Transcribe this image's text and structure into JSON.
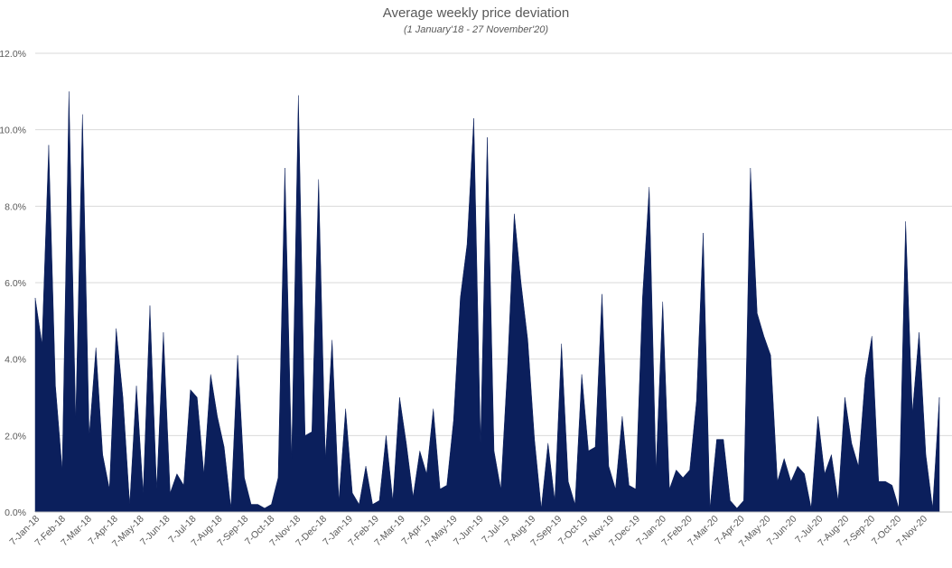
{
  "chart_data": {
    "type": "area",
    "title": "Average weekly price deviation",
    "subtitle": "(1 January'18 - 27 November'20)",
    "xlabel": "",
    "ylabel": "",
    "ylim": [
      0,
      12
    ],
    "y_ticks": [
      "0.0%",
      "2.0%",
      "4.0%",
      "6.0%",
      "8.0%",
      "10.0%",
      "12.0%"
    ],
    "y_tick_values": [
      0,
      2,
      4,
      6,
      8,
      10,
      12
    ],
    "grid": true,
    "legend": "none",
    "color": "#0b1f5c",
    "x_tick_labels": [
      "7-Jan-18",
      "7-Feb-18",
      "7-Mar-18",
      "7-Apr-18",
      "7-May-18",
      "7-Jun-18",
      "7-Jul-18",
      "7-Aug-18",
      "7-Sep-18",
      "7-Oct-18",
      "7-Nov-18",
      "7-Dec-18",
      "7-Jan-19",
      "7-Feb-19",
      "7-Mar-19",
      "7-Apr-19",
      "7-May-19",
      "7-Jun-19",
      "7-Jul-19",
      "7-Aug-19",
      "7-Sep-19",
      "7-Oct-19",
      "7-Nov-19",
      "7-Dec-19",
      "7-Jan-20",
      "7-Feb-20",
      "7-Mar-20",
      "7-Apr-20",
      "7-May-20",
      "7-Jun-20",
      "7-Jul-20",
      "7-Aug-20",
      "7-Sep-20",
      "7-Oct-20",
      "7-Nov-20"
    ],
    "series": [
      {
        "values": [
          5.6,
          4.4,
          9.6,
          3.3,
          1.1,
          11.0,
          2.4,
          10.4,
          2.0,
          4.3,
          1.5,
          0.6,
          4.8,
          3.0,
          0.2,
          3.3,
          0.5,
          5.4,
          0.6,
          4.7,
          0.5,
          1.0,
          0.7,
          3.2,
          3.0,
          1.0,
          3.6,
          2.5,
          1.7,
          0.1,
          4.1,
          0.9,
          0.2,
          0.2,
          0.1,
          0.2,
          0.9,
          9.0,
          1.4,
          10.9,
          2.0,
          2.1,
          8.7,
          1.4,
          4.5,
          0.3,
          2.7,
          0.5,
          0.2,
          1.2,
          0.2,
          0.3,
          2.0,
          0.3,
          3.0,
          1.8,
          0.4,
          1.6,
          1.0,
          2.7,
          0.6,
          0.7,
          2.4,
          5.6,
          7.0,
          10.3,
          1.8,
          9.8,
          1.6,
          0.6,
          3.8,
          7.8,
          6.0,
          4.5,
          1.9,
          0.1,
          1.8,
          0.3,
          4.4,
          0.8,
          0.2,
          3.6,
          1.6,
          1.7,
          5.7,
          1.2,
          0.6,
          2.5,
          0.7,
          0.6,
          5.6,
          8.5,
          1.1,
          5.5,
          0.6,
          1.1,
          0.9,
          1.1,
          2.9,
          7.3,
          0.1,
          1.9,
          1.9,
          0.3,
          0.1,
          0.3,
          9.0,
          5.2,
          4.6,
          4.1,
          0.8,
          1.4,
          0.8,
          1.2,
          1.0,
          0.1,
          2.5,
          1.0,
          1.5,
          0.3,
          3.0,
          1.8,
          1.2,
          3.5,
          4.6,
          0.8,
          0.8,
          0.7,
          0.1,
          7.6,
          2.6,
          4.7,
          1.5,
          0.1,
          3.0
        ]
      }
    ]
  }
}
